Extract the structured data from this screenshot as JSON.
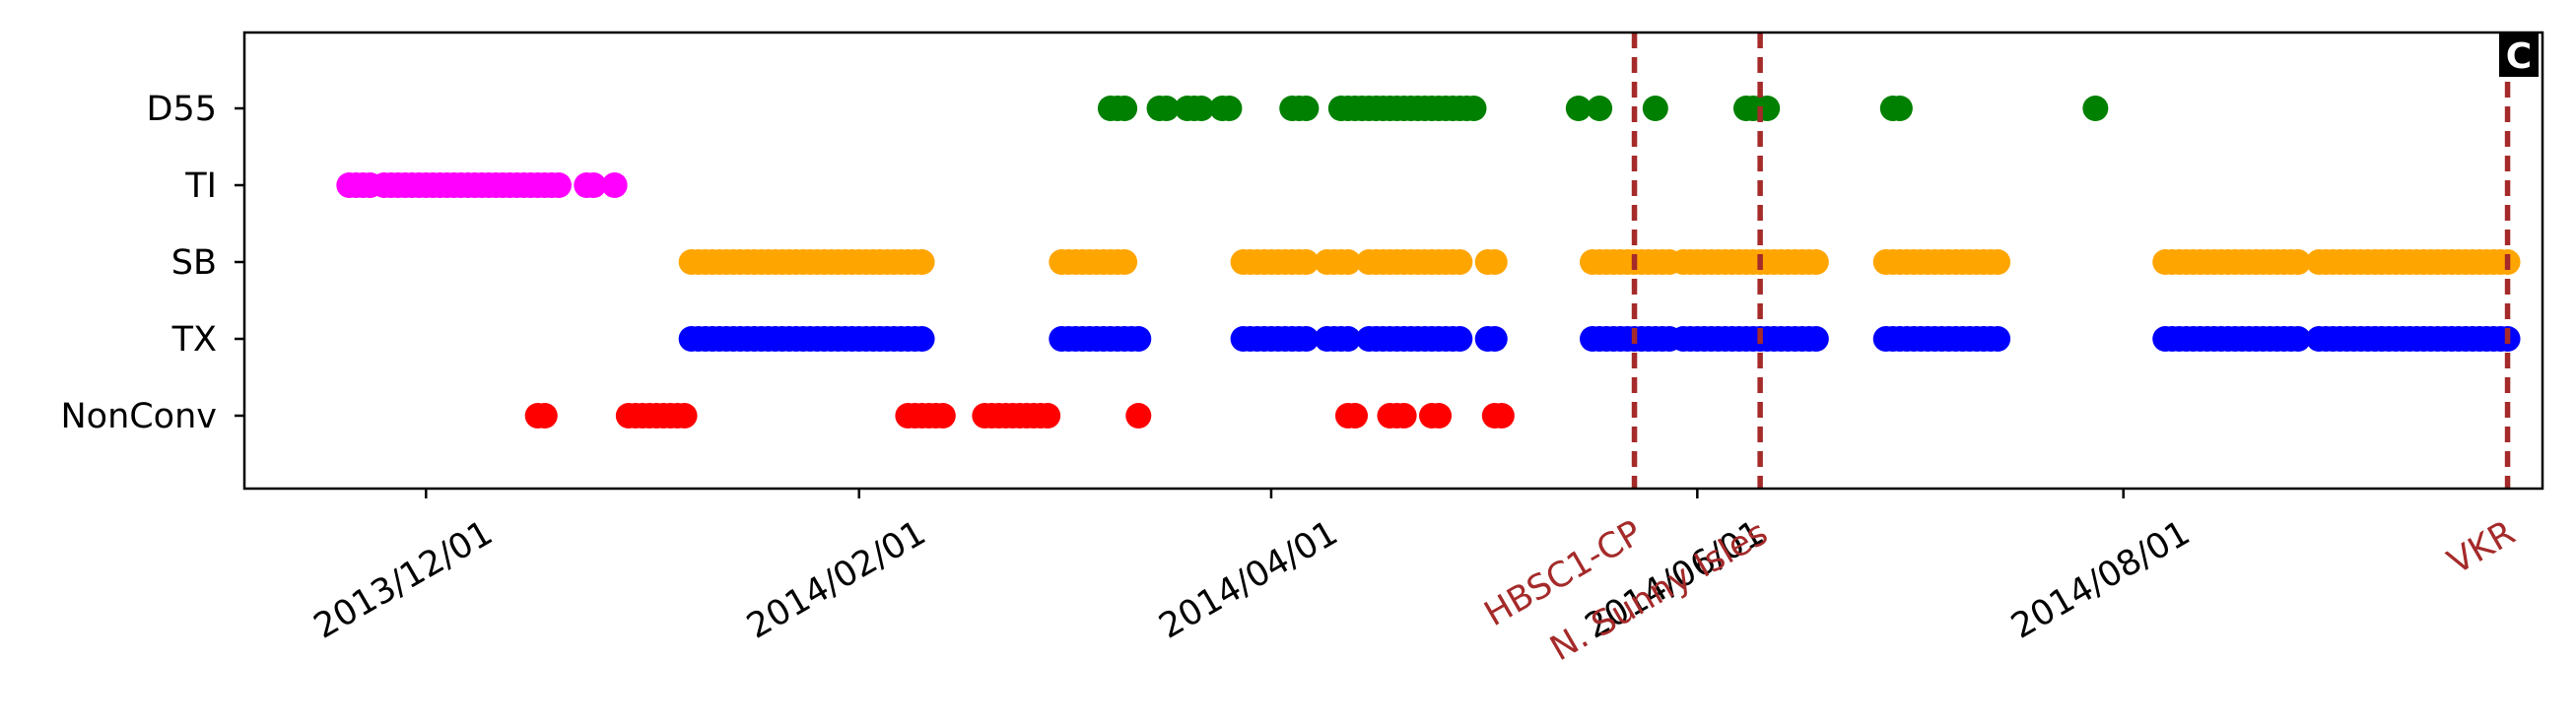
{
  "panel_label": "C",
  "chart_data": {
    "type": "scatter",
    "title": "",
    "xlabel": "",
    "ylabel": "",
    "xlim": [
      "2013-11-05",
      "2014-09-30"
    ],
    "x_ticks": [
      {
        "date": "2013-12-01",
        "label": "2013/12/01"
      },
      {
        "date": "2014-02-01",
        "label": "2014/02/01"
      },
      {
        "date": "2014-04-01",
        "label": "2014/04/01"
      },
      {
        "date": "2014-06-01",
        "label": "2014/06/01"
      },
      {
        "date": "2014-08-01",
        "label": "2014/08/01"
      }
    ],
    "categories": [
      "D55",
      "TI",
      "SB",
      "TX",
      "NonConv"
    ],
    "series": [
      {
        "category": "D55",
        "color": "#008000",
        "dates": [
          "2014-03-09",
          "2014-03-10",
          "2014-03-11",
          "2014-03-16",
          "2014-03-17",
          "2014-03-20",
          "2014-03-21",
          "2014-03-22",
          "2014-03-25",
          "2014-03-26",
          "2014-04-04",
          "2014-04-05",
          "2014-04-06",
          "2014-04-11",
          "2014-04-12",
          "2014-04-13",
          "2014-04-14",
          "2014-04-15",
          "2014-04-16",
          "2014-04-17",
          "2014-04-18",
          "2014-04-19",
          "2014-04-20",
          "2014-04-21",
          "2014-04-22",
          "2014-04-23",
          "2014-04-24",
          "2014-04-25",
          "2014-04-26",
          "2014-04-27",
          "2014-04-28",
          "2014-04-29",
          "2014-04-30",
          "2014-05-15",
          "2014-05-18",
          "2014-05-26",
          "2014-06-08",
          "2014-06-09",
          "2014-06-10",
          "2014-06-11",
          "2014-06-29",
          "2014-06-30",
          "2014-07-28"
        ]
      },
      {
        "category": "TI",
        "color": "#ff00ff",
        "dates": [
          "2013-11-20",
          "2013-11-21",
          "2013-11-22",
          "2013-11-23",
          "2013-11-25",
          "2013-11-26",
          "2013-11-27",
          "2013-11-28",
          "2013-11-29",
          "2013-11-30",
          "2013-12-01",
          "2013-12-02",
          "2013-12-03",
          "2013-12-04",
          "2013-12-05",
          "2013-12-06",
          "2013-12-07",
          "2013-12-08",
          "2013-12-09",
          "2013-12-10",
          "2013-12-11",
          "2013-12-12",
          "2013-12-13",
          "2013-12-14",
          "2013-12-15",
          "2013-12-16",
          "2013-12-17",
          "2013-12-18",
          "2013-12-19",
          "2013-12-20",
          "2013-12-24",
          "2013-12-25",
          "2013-12-28"
        ]
      },
      {
        "category": "SB",
        "color": "#ffa500",
        "dates": [
          "2014-01-08",
          "2014-01-09",
          "2014-01-10",
          "2014-01-11",
          "2014-01-12",
          "2014-01-13",
          "2014-01-14",
          "2014-01-15",
          "2014-01-16",
          "2014-01-17",
          "2014-01-18",
          "2014-01-19",
          "2014-01-20",
          "2014-01-21",
          "2014-01-22",
          "2014-01-23",
          "2014-01-24",
          "2014-01-25",
          "2014-01-26",
          "2014-01-27",
          "2014-01-28",
          "2014-01-29",
          "2014-01-30",
          "2014-01-31",
          "2014-02-01",
          "2014-02-02",
          "2014-02-03",
          "2014-02-04",
          "2014-02-05",
          "2014-02-06",
          "2014-02-07",
          "2014-02-08",
          "2014-02-09",
          "2014-02-10",
          "2014-03-02",
          "2014-03-03",
          "2014-03-04",
          "2014-03-05",
          "2014-03-06",
          "2014-03-07",
          "2014-03-08",
          "2014-03-09",
          "2014-03-10",
          "2014-03-11",
          "2014-03-28",
          "2014-03-29",
          "2014-03-30",
          "2014-03-31",
          "2014-04-01",
          "2014-04-02",
          "2014-04-03",
          "2014-04-04",
          "2014-04-05",
          "2014-04-06",
          "2014-04-09",
          "2014-04-10",
          "2014-04-11",
          "2014-04-12",
          "2014-04-15",
          "2014-04-16",
          "2014-04-17",
          "2014-04-18",
          "2014-04-19",
          "2014-04-20",
          "2014-04-21",
          "2014-04-22",
          "2014-04-23",
          "2014-04-24",
          "2014-04-25",
          "2014-04-26",
          "2014-04-27",
          "2014-04-28",
          "2014-05-02",
          "2014-05-03",
          "2014-05-17",
          "2014-05-18",
          "2014-05-19",
          "2014-05-20",
          "2014-05-21",
          "2014-05-22",
          "2014-05-23",
          "2014-05-24",
          "2014-05-25",
          "2014-05-26",
          "2014-05-27",
          "2014-05-28",
          "2014-05-30",
          "2014-05-31",
          "2014-06-01",
          "2014-06-02",
          "2014-06-03",
          "2014-06-04",
          "2014-06-05",
          "2014-06-06",
          "2014-06-07",
          "2014-06-08",
          "2014-06-09",
          "2014-06-10",
          "2014-06-11",
          "2014-06-12",
          "2014-06-13",
          "2014-06-14",
          "2014-06-15",
          "2014-06-16",
          "2014-06-17",
          "2014-06-18",
          "2014-06-28",
          "2014-06-29",
          "2014-06-30",
          "2014-07-01",
          "2014-07-02",
          "2014-07-03",
          "2014-07-04",
          "2014-07-05",
          "2014-07-06",
          "2014-07-07",
          "2014-07-08",
          "2014-07-09",
          "2014-07-10",
          "2014-07-11",
          "2014-07-12",
          "2014-07-13",
          "2014-07-14",
          "2014-08-07",
          "2014-08-08",
          "2014-08-09",
          "2014-08-10",
          "2014-08-11",
          "2014-08-12",
          "2014-08-13",
          "2014-08-14",
          "2014-08-15",
          "2014-08-16",
          "2014-08-17",
          "2014-08-18",
          "2014-08-19",
          "2014-08-20",
          "2014-08-21",
          "2014-08-22",
          "2014-08-23",
          "2014-08-24",
          "2014-08-25",
          "2014-08-26",
          "2014-08-29",
          "2014-08-30",
          "2014-08-31",
          "2014-09-01",
          "2014-09-02",
          "2014-09-03",
          "2014-09-04",
          "2014-09-05",
          "2014-09-06",
          "2014-09-07",
          "2014-09-08",
          "2014-09-09",
          "2014-09-10",
          "2014-09-11",
          "2014-09-12",
          "2014-09-13",
          "2014-09-14",
          "2014-09-15",
          "2014-09-16",
          "2014-09-17",
          "2014-09-18",
          "2014-09-19",
          "2014-09-20",
          "2014-09-21",
          "2014-09-22",
          "2014-09-23",
          "2014-09-24",
          "2014-09-25"
        ]
      },
      {
        "category": "TX",
        "color": "#0000ff",
        "dates": [
          "2014-01-08",
          "2014-01-09",
          "2014-01-10",
          "2014-01-11",
          "2014-01-12",
          "2014-01-13",
          "2014-01-14",
          "2014-01-15",
          "2014-01-16",
          "2014-01-17",
          "2014-01-18",
          "2014-01-19",
          "2014-01-20",
          "2014-01-21",
          "2014-01-22",
          "2014-01-23",
          "2014-01-24",
          "2014-01-25",
          "2014-01-26",
          "2014-01-27",
          "2014-01-28",
          "2014-01-29",
          "2014-01-30",
          "2014-01-31",
          "2014-02-01",
          "2014-02-02",
          "2014-02-03",
          "2014-02-04",
          "2014-02-05",
          "2014-02-06",
          "2014-02-07",
          "2014-02-08",
          "2014-02-09",
          "2014-02-10",
          "2014-03-02",
          "2014-03-03",
          "2014-03-04",
          "2014-03-05",
          "2014-03-06",
          "2014-03-07",
          "2014-03-08",
          "2014-03-09",
          "2014-03-10",
          "2014-03-11",
          "2014-03-12",
          "2014-03-13",
          "2014-03-28",
          "2014-03-29",
          "2014-03-30",
          "2014-03-31",
          "2014-04-01",
          "2014-04-02",
          "2014-04-03",
          "2014-04-04",
          "2014-04-05",
          "2014-04-06",
          "2014-04-09",
          "2014-04-10",
          "2014-04-11",
          "2014-04-12",
          "2014-04-15",
          "2014-04-16",
          "2014-04-17",
          "2014-04-18",
          "2014-04-19",
          "2014-04-20",
          "2014-04-21",
          "2014-04-22",
          "2014-04-23",
          "2014-04-24",
          "2014-04-25",
          "2014-04-26",
          "2014-04-27",
          "2014-04-28",
          "2014-05-02",
          "2014-05-03",
          "2014-05-17",
          "2014-05-18",
          "2014-05-19",
          "2014-05-20",
          "2014-05-21",
          "2014-05-22",
          "2014-05-23",
          "2014-05-24",
          "2014-05-25",
          "2014-05-26",
          "2014-05-27",
          "2014-05-28",
          "2014-05-30",
          "2014-05-31",
          "2014-06-01",
          "2014-06-02",
          "2014-06-03",
          "2014-06-04",
          "2014-06-05",
          "2014-06-06",
          "2014-06-07",
          "2014-06-08",
          "2014-06-09",
          "2014-06-10",
          "2014-06-11",
          "2014-06-12",
          "2014-06-13",
          "2014-06-14",
          "2014-06-15",
          "2014-06-16",
          "2014-06-17",
          "2014-06-18",
          "2014-06-28",
          "2014-06-29",
          "2014-06-30",
          "2014-07-01",
          "2014-07-02",
          "2014-07-03",
          "2014-07-04",
          "2014-07-05",
          "2014-07-06",
          "2014-07-07",
          "2014-07-08",
          "2014-07-09",
          "2014-07-10",
          "2014-07-11",
          "2014-07-12",
          "2014-07-13",
          "2014-07-14",
          "2014-08-07",
          "2014-08-08",
          "2014-08-09",
          "2014-08-10",
          "2014-08-11",
          "2014-08-12",
          "2014-08-13",
          "2014-08-14",
          "2014-08-15",
          "2014-08-16",
          "2014-08-17",
          "2014-08-18",
          "2014-08-19",
          "2014-08-20",
          "2014-08-21",
          "2014-08-22",
          "2014-08-23",
          "2014-08-24",
          "2014-08-25",
          "2014-08-26",
          "2014-08-29",
          "2014-08-30",
          "2014-08-31",
          "2014-09-01",
          "2014-09-02",
          "2014-09-03",
          "2014-09-04",
          "2014-09-05",
          "2014-09-06",
          "2014-09-07",
          "2014-09-08",
          "2014-09-09",
          "2014-09-10",
          "2014-09-11",
          "2014-09-12",
          "2014-09-13",
          "2014-09-14",
          "2014-09-15",
          "2014-09-16",
          "2014-09-17",
          "2014-09-18",
          "2014-09-19",
          "2014-09-20",
          "2014-09-21",
          "2014-09-22",
          "2014-09-23",
          "2014-09-24",
          "2014-09-25"
        ]
      },
      {
        "category": "NonConv",
        "color": "#ff0000",
        "dates": [
          "2013-12-17",
          "2013-12-18",
          "2013-12-30",
          "2013-12-31",
          "2014-01-01",
          "2014-01-02",
          "2014-01-03",
          "2014-01-04",
          "2014-01-05",
          "2014-01-06",
          "2014-01-07",
          "2014-02-08",
          "2014-02-09",
          "2014-02-10",
          "2014-02-11",
          "2014-02-12",
          "2014-02-13",
          "2014-02-19",
          "2014-02-20",
          "2014-02-21",
          "2014-02-22",
          "2014-02-23",
          "2014-02-24",
          "2014-02-25",
          "2014-02-26",
          "2014-02-27",
          "2014-02-28",
          "2014-03-13",
          "2014-04-12",
          "2014-04-13",
          "2014-04-18",
          "2014-04-19",
          "2014-04-20",
          "2014-04-24",
          "2014-04-25",
          "2014-05-03",
          "2014-05-04"
        ]
      }
    ],
    "event_lines": [
      {
        "date": "2014-05-23",
        "label": "HBSC1-CP",
        "color": "#a52a2a"
      },
      {
        "date": "2014-06-10",
        "label": "N. Sunny Isles",
        "color": "#a52a2a"
      },
      {
        "date": "2014-09-25",
        "label": "VKR",
        "color": "#a52a2a"
      }
    ],
    "grid": false,
    "legend": "none"
  }
}
